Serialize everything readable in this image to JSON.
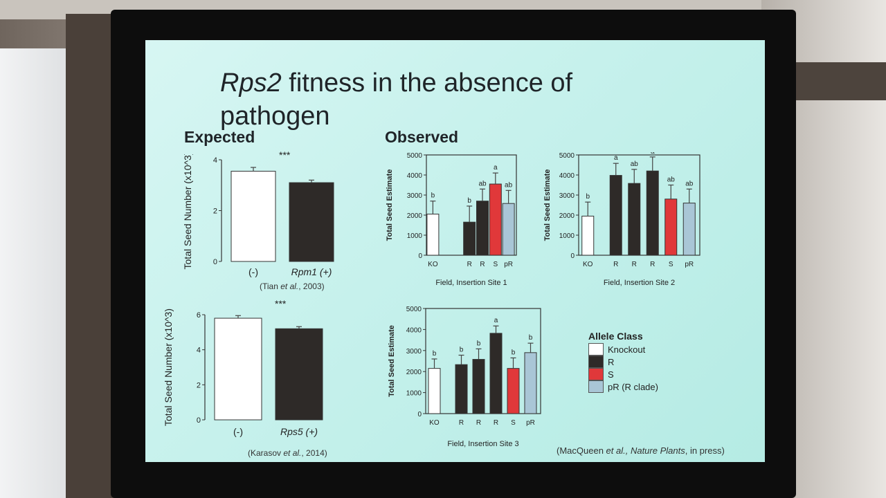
{
  "slide": {
    "title_italic": "Rps2",
    "title_rest": " fitness in the absence of pathogen",
    "expected_heading": "Expected",
    "observed_heading": "Observed",
    "citation_tian_a": "(Tian ",
    "citation_tian_i": "et al.",
    "citation_tian_b": ", 2003)",
    "citation_karasov_a": "(Karasov ",
    "citation_karasov_i": "et al.",
    "citation_karasov_b": ", 2014)",
    "citation_macqueen_a": "(MacQueen ",
    "citation_macqueen_i": "et al., Nature Plants",
    "citation_macqueen_b": ", in press)",
    "sig_1": "***",
    "sig_2": "***"
  },
  "legend": {
    "title": "Allele Class",
    "items": [
      {
        "label": "Knockout",
        "color": "#ffffff"
      },
      {
        "label": "R",
        "color": "#2e2a28"
      },
      {
        "label": "S",
        "color": "#e0383a"
      },
      {
        "label": "pR (R clade)",
        "color": "#a9c6d6"
      }
    ]
  },
  "chart_data": [
    {
      "type": "bar",
      "ylabel": "Total Seed Number (x10^3)",
      "ylim": [
        0,
        4
      ],
      "yticks": [
        0,
        2,
        4
      ],
      "categories": [
        "(-)",
        "Rpm1 (+)"
      ],
      "values": [
        3.55,
        3.1
      ],
      "errors": [
        0.15,
        0.1
      ],
      "colors": [
        "#ffffff",
        "#2e2a28"
      ]
    },
    {
      "type": "bar",
      "ylabel": "Total Seed Number (x10^3)",
      "ylim": [
        0,
        6
      ],
      "yticks": [
        0,
        2,
        4,
        6
      ],
      "categories": [
        "(-)",
        "Rps5 (+)"
      ],
      "values": [
        5.8,
        5.2
      ],
      "errors": [
        0.15,
        0.12
      ],
      "colors": [
        "#ffffff",
        "#2e2a28"
      ]
    },
    {
      "type": "bar",
      "xlabel": "Field, Insertion Site 1",
      "ylabel": "Total Seed Estimate",
      "ylim": [
        0,
        5000
      ],
      "yticks": [
        0,
        1000,
        2000,
        3000,
        4000,
        5000
      ],
      "categories": [
        "KO",
        "R",
        "R",
        "S",
        "pR"
      ],
      "values": [
        2050,
        1650,
        2700,
        3550,
        2580
      ],
      "errors": [
        650,
        800,
        600,
        550,
        650
      ],
      "letters": [
        "b",
        "b",
        "ab",
        "a",
        "ab"
      ],
      "colors": [
        "#ffffff",
        "#2e2a28",
        "#2e2a28",
        "#e0383a",
        "#a9c6d6"
      ]
    },
    {
      "type": "bar",
      "xlabel": "Field, Insertion Site 2",
      "ylabel": "Total Seed Estimate",
      "ylim": [
        0,
        5000
      ],
      "yticks": [
        0,
        1000,
        2000,
        3000,
        4000,
        5000
      ],
      "categories": [
        "KO",
        "R",
        "R",
        "R",
        "S",
        "pR"
      ],
      "values": [
        1950,
        3980,
        3580,
        4200,
        2800,
        2600
      ],
      "errors": [
        700,
        600,
        700,
        700,
        700,
        700
      ],
      "letters": [
        "b",
        "a",
        "ab",
        "a",
        "ab",
        "ab"
      ],
      "colors": [
        "#ffffff",
        "#2e2a28",
        "#2e2a28",
        "#2e2a28",
        "#e0383a",
        "#a9c6d6"
      ]
    },
    {
      "type": "bar",
      "xlabel": "Field, Insertion Site 3",
      "ylabel": "Total Seed Estimate",
      "ylim": [
        0,
        5000
      ],
      "yticks": [
        0,
        1000,
        2000,
        3000,
        4000,
        5000
      ],
      "categories": [
        "KO",
        "R",
        "R",
        "R",
        "S",
        "pR"
      ],
      "values": [
        2150,
        2330,
        2580,
        3820,
        2150,
        2900
      ],
      "errors": [
        450,
        450,
        500,
        350,
        500,
        450
      ],
      "letters": [
        "b",
        "b",
        "b",
        "a",
        "b",
        "b"
      ],
      "colors": [
        "#ffffff",
        "#2e2a28",
        "#2e2a28",
        "#2e2a28",
        "#e0383a",
        "#a9c6d6"
      ]
    }
  ]
}
